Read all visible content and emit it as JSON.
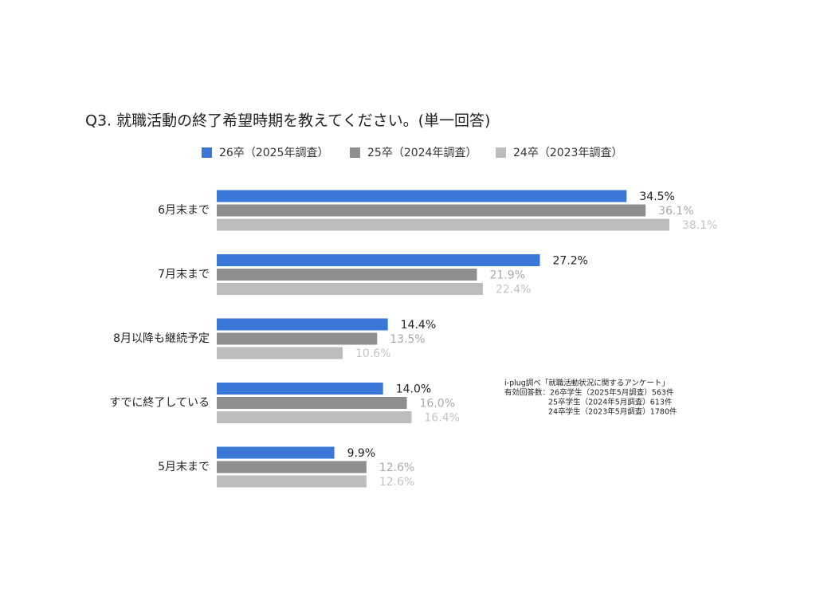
{
  "chart_data": {
    "type": "bar",
    "orientation": "horizontal",
    "title": "Q3. 就職活動の終了希望時期を教えてください。(単一回答)",
    "categories": [
      "6月末まで",
      "7月末まで",
      "8月以降も継続予定",
      "すでに終了している",
      "5月末まで"
    ],
    "series": [
      {
        "name": "26卒（2025年調査）",
        "color": "#3a78d8",
        "label_color": "#222222",
        "values": [
          34.5,
          27.2,
          14.4,
          14.0,
          9.9
        ],
        "value_labels": [
          "34.5%",
          "27.2%",
          "14.4%",
          "14.0%",
          "9.9%"
        ]
      },
      {
        "name": "25卒（2024年調査）",
        "color": "#8e8e8e",
        "label_color": "#a8a8a8",
        "values": [
          36.1,
          21.9,
          13.5,
          16.0,
          12.6
        ],
        "value_labels": [
          "36.1%",
          "21.9%",
          "13.5%",
          "16.0%",
          "12.6%"
        ]
      },
      {
        "name": "24卒（2023年調査）",
        "color": "#bdbdbd",
        "label_color": "#c4c4c4",
        "values": [
          38.1,
          22.4,
          10.6,
          16.4,
          12.6
        ],
        "value_labels": [
          "38.1%",
          "22.4%",
          "10.6%",
          "16.4%",
          "12.6%"
        ]
      }
    ],
    "annotations": [
      "i-plug調べ「就職活動状況に関するアンケート」",
      "有効回答数：26卒学生（2025年5月調査）563件",
      "25卒学生（2024年5月調査）613件",
      "24卒学生（2023年5月調査）1780件"
    ]
  }
}
